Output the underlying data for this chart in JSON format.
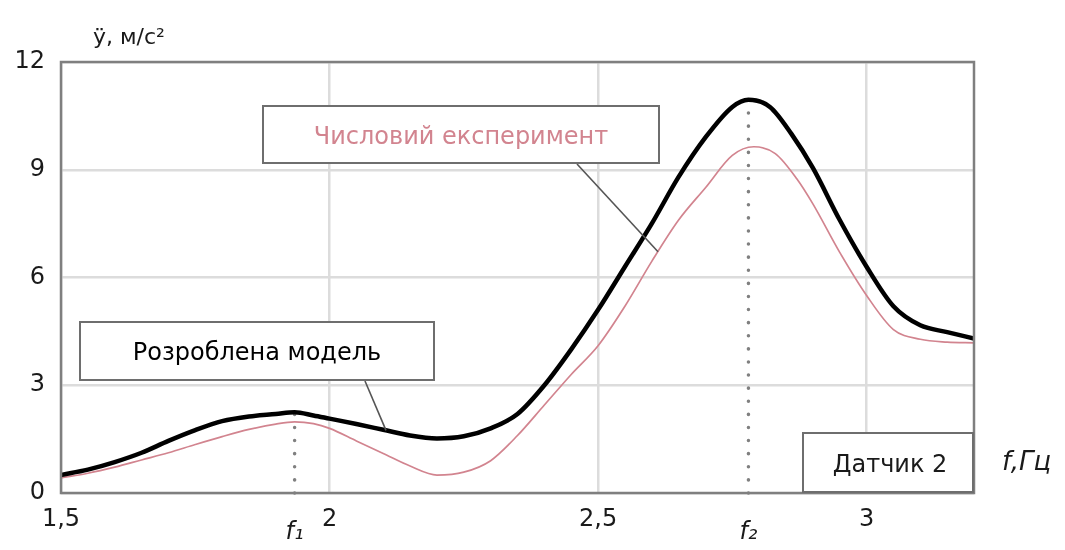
{
  "chart_data": {
    "type": "line",
    "xlabel": "f,Гц",
    "ylabel": "ÿ, м/с²",
    "annotations": [
      "Датчик 2"
    ],
    "series": [
      {
        "name": "Розроблена модель",
        "color": "#000000",
        "x": [
          1.5,
          1.55,
          1.6,
          1.65,
          1.7,
          1.75,
          1.8,
          1.85,
          1.9,
          1.935,
          1.97,
          2.0,
          2.05,
          2.1,
          2.15,
          2.2,
          2.25,
          2.3,
          2.35,
          2.4,
          2.45,
          2.5,
          2.55,
          2.6,
          2.65,
          2.7,
          2.75,
          2.78,
          2.82,
          2.86,
          2.9,
          2.95,
          3.0,
          3.05,
          3.1,
          3.15,
          3.2
        ],
        "values": [
          0.5,
          0.65,
          0.86,
          1.12,
          1.45,
          1.75,
          2.0,
          2.13,
          2.2,
          2.25,
          2.16,
          2.07,
          1.92,
          1.76,
          1.6,
          1.52,
          1.58,
          1.8,
          2.2,
          3.0,
          4.0,
          5.1,
          6.3,
          7.5,
          8.8,
          9.9,
          10.75,
          10.95,
          10.75,
          10.0,
          9.05,
          7.6,
          6.3,
          5.2,
          4.67,
          4.48,
          4.3
        ]
      },
      {
        "name": "Числовий експеримент",
        "color": "#d2848f",
        "x": [
          1.5,
          1.55,
          1.6,
          1.65,
          1.7,
          1.75,
          1.8,
          1.85,
          1.9,
          1.935,
          1.97,
          2.0,
          2.05,
          2.1,
          2.15,
          2.2,
          2.25,
          2.3,
          2.35,
          2.4,
          2.45,
          2.5,
          2.55,
          2.6,
          2.65,
          2.7,
          2.75,
          2.79,
          2.83,
          2.87,
          2.9,
          2.95,
          3.0,
          3.05,
          3.1,
          3.15,
          3.2
        ],
        "values": [
          0.42,
          0.55,
          0.72,
          0.92,
          1.12,
          1.35,
          1.57,
          1.77,
          1.92,
          1.98,
          1.93,
          1.8,
          1.45,
          1.1,
          0.75,
          0.5,
          0.58,
          0.9,
          1.6,
          2.45,
          3.3,
          4.1,
          5.2,
          6.45,
          7.6,
          8.5,
          9.4,
          9.64,
          9.45,
          8.75,
          8.05,
          6.7,
          5.5,
          4.55,
          4.28,
          4.2,
          4.18
        ]
      }
    ],
    "xlim": [
      1.5,
      3.2
    ],
    "ylim": [
      0,
      12
    ],
    "xticks": [
      {
        "value": 1.5,
        "label": "1,5"
      },
      2,
      {
        "value": 2.5,
        "label": "2,5"
      },
      3
    ],
    "yticks": [
      0,
      3,
      6,
      9,
      12
    ],
    "grid": true,
    "ref_lines": [
      {
        "axis": "x",
        "value": 1.935,
        "label": "f₁",
        "color": "#808080",
        "line_style": "dotted"
      },
      {
        "axis": "x",
        "value": 2.78,
        "label": "f₂",
        "color": "#808080",
        "line_style": "dotted"
      }
    ]
  }
}
